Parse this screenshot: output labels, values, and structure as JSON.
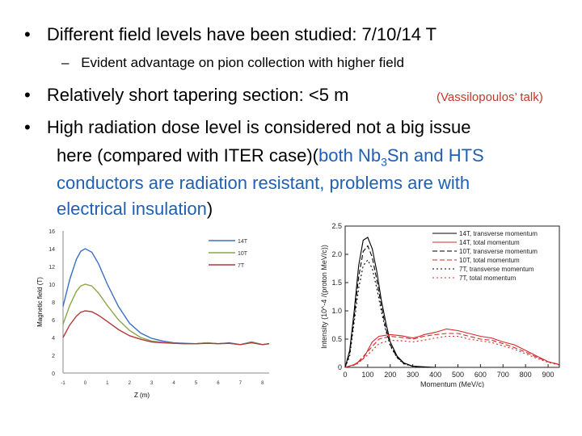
{
  "bullets": [
    {
      "prefix": "Different field levels have been studied: 7/10/14 T"
    },
    {
      "sub": "Evident advantage on pion collection with higher field"
    },
    {
      "main": "Relatively short tapering section: <5 m",
      "note": "(Vassilopoulos’ talk)"
    },
    {
      "line1": "High radiation dose level is considered not a big issue",
      "line2a": "here (compared with ITER case)(",
      "blue1": "both Nb",
      "sub3": "3",
      "blue2": "Sn and HTS",
      "line3": "conductors are radiation resistant, problems are with",
      "line4a": "electrical insulation",
      "line4b": ")"
    }
  ],
  "bullet_symbol": "•",
  "dash_symbol": "–",
  "colors": {
    "accent_blue": "#1f5fb4",
    "note_red": "#c0392b",
    "field14": "#3a6fc4",
    "field10": "#8ca54a",
    "field7": "#b33a3a"
  },
  "chart_data": [
    {
      "type": "line",
      "title": "",
      "xlabel": "Z (m)",
      "ylabel": "Magnetic field (T)",
      "ylim": [
        0,
        16
      ],
      "yticks": [
        "0",
        "2",
        "4",
        "6",
        "8",
        "10",
        "12",
        "14",
        "16"
      ],
      "xticks": [
        "-1",
        "0",
        "1",
        "2",
        "3",
        "4",
        "5",
        "6",
        "7",
        "8"
      ],
      "xlim": [
        -1,
        8.3
      ],
      "legend": [
        "14T",
        "10T",
        "7T"
      ],
      "series": [
        {
          "name": "14T",
          "x": [
            -1,
            -0.7,
            -0.4,
            -0.2,
            0,
            0.3,
            0.6,
            1,
            1.5,
            2,
            2.5,
            3,
            3.5,
            4,
            4.5,
            5,
            5.5,
            6,
            6.5,
            7,
            7.5,
            8,
            8.3
          ],
          "y": [
            7.5,
            10.5,
            12.8,
            13.7,
            14,
            13.6,
            12.3,
            10,
            7.5,
            5.6,
            4.5,
            3.9,
            3.6,
            3.4,
            3.35,
            3.3,
            3.4,
            3.3,
            3.4,
            3.2,
            3.5,
            3.2,
            3.3
          ]
        },
        {
          "name": "10T",
          "x": [
            -1,
            -0.7,
            -0.4,
            -0.2,
            0,
            0.3,
            0.6,
            1,
            1.5,
            2,
            2.5,
            3,
            3.5,
            4,
            4.5,
            5,
            5.5,
            6,
            6.5,
            7,
            7.5,
            8,
            8.3
          ],
          "y": [
            5.5,
            7.6,
            9.2,
            9.8,
            10,
            9.8,
            9,
            7.6,
            6,
            4.8,
            4,
            3.6,
            3.45,
            3.35,
            3.3,
            3.3,
            3.4,
            3.3,
            3.35,
            3.2,
            3.45,
            3.2,
            3.3
          ]
        },
        {
          "name": "7T",
          "x": [
            -1,
            -0.7,
            -0.4,
            -0.2,
            0,
            0.3,
            0.6,
            1,
            1.5,
            2,
            2.5,
            3,
            3.5,
            4,
            4.5,
            5,
            5.5,
            6,
            6.5,
            7,
            7.5,
            8,
            8.3
          ],
          "y": [
            4,
            5.4,
            6.4,
            6.85,
            7,
            6.9,
            6.5,
            5.8,
            4.9,
            4.2,
            3.8,
            3.5,
            3.4,
            3.35,
            3.3,
            3.3,
            3.35,
            3.3,
            3.35,
            3.2,
            3.4,
            3.2,
            3.3
          ]
        }
      ]
    },
    {
      "type": "line",
      "title": "",
      "xlabel": "Momentum (MeV/c)",
      "ylabel": "Intensity (10^-4 /(proton MeV/c))",
      "xlim": [
        0,
        950
      ],
      "ylim": [
        0,
        2.5
      ],
      "xticks": [
        "0",
        "100",
        "200",
        "300",
        "400",
        "500",
        "600",
        "700",
        "800",
        "900"
      ],
      "yticks": [
        "0",
        "0.5",
        "1.0",
        "1.5",
        "2.0",
        "2.5"
      ],
      "legend": [
        "14T, transverse momentum",
        "14T, total momentum",
        "10T, transverse momentum",
        "10T, total momentum",
        "7T, transverse momentum",
        "7T, total momentum"
      ],
      "series": [
        {
          "name": "14T, transverse momentum",
          "color": "#000000",
          "dash": "",
          "x": [
            0,
            20,
            40,
            60,
            80,
            100,
            120,
            140,
            160,
            180,
            200,
            230,
            260,
            300,
            350,
            400
          ],
          "y": [
            0,
            0.3,
            1.0,
            1.8,
            2.25,
            2.3,
            2.1,
            1.7,
            1.2,
            0.8,
            0.45,
            0.2,
            0.08,
            0.02,
            0.01,
            0
          ]
        },
        {
          "name": "14T, total momentum",
          "color": "#d62728",
          "dash": "",
          "x": [
            0,
            40,
            80,
            100,
            120,
            150,
            200,
            250,
            300,
            330,
            350,
            400,
            450,
            500,
            550,
            600,
            650,
            700,
            750,
            800,
            850,
            900,
            950
          ],
          "y": [
            0,
            0.05,
            0.15,
            0.3,
            0.45,
            0.55,
            0.58,
            0.56,
            0.52,
            0.55,
            0.58,
            0.62,
            0.68,
            0.65,
            0.6,
            0.55,
            0.52,
            0.45,
            0.4,
            0.3,
            0.2,
            0.1,
            0.05
          ]
        },
        {
          "name": "10T, transverse momentum",
          "color": "#000000",
          "dash": "6,3",
          "x": [
            0,
            20,
            40,
            60,
            80,
            100,
            120,
            140,
            160,
            180,
            200,
            230,
            260,
            300,
            350
          ],
          "y": [
            0,
            0.25,
            0.9,
            1.6,
            2.05,
            2.15,
            1.95,
            1.55,
            1.1,
            0.7,
            0.4,
            0.18,
            0.07,
            0.02,
            0
          ]
        },
        {
          "name": "10T, total momentum",
          "color": "#d62728",
          "dash": "6,3",
          "x": [
            0,
            50,
            100,
            150,
            200,
            250,
            300,
            350,
            400,
            450,
            500,
            550,
            600,
            650,
            700,
            750,
            800,
            850,
            900,
            950
          ],
          "y": [
            0,
            0.06,
            0.28,
            0.5,
            0.55,
            0.53,
            0.5,
            0.55,
            0.58,
            0.6,
            0.6,
            0.55,
            0.5,
            0.48,
            0.42,
            0.35,
            0.27,
            0.18,
            0.1,
            0.05
          ]
        },
        {
          "name": "7T, transverse momentum",
          "color": "#000000",
          "dash": "2,3",
          "x": [
            0,
            20,
            40,
            60,
            80,
            100,
            120,
            140,
            160,
            180,
            200,
            230,
            260,
            300,
            350
          ],
          "y": [
            0,
            0.2,
            0.8,
            1.4,
            1.8,
            1.9,
            1.75,
            1.4,
            1.0,
            0.65,
            0.38,
            0.17,
            0.06,
            0.02,
            0
          ]
        },
        {
          "name": "7T, total momentum",
          "color": "#d62728",
          "dash": "2,3",
          "x": [
            0,
            50,
            100,
            150,
            200,
            250,
            300,
            350,
            400,
            450,
            500,
            550,
            600,
            650,
            700,
            750,
            800,
            850,
            900,
            950
          ],
          "y": [
            0,
            0.05,
            0.22,
            0.42,
            0.48,
            0.47,
            0.45,
            0.48,
            0.52,
            0.55,
            0.55,
            0.5,
            0.47,
            0.44,
            0.38,
            0.32,
            0.24,
            0.16,
            0.09,
            0.04
          ]
        }
      ]
    }
  ]
}
